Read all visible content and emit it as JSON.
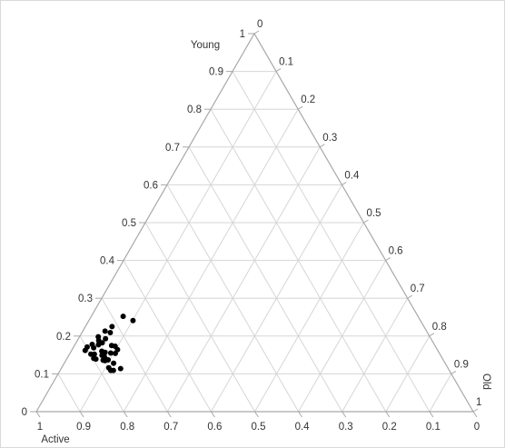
{
  "chart_data": {
    "type": "ternary",
    "axes": {
      "top": {
        "label": "Young"
      },
      "right": {
        "label": "Old"
      },
      "left": {
        "label": "Active"
      }
    },
    "range": [
      0,
      1
    ],
    "tick_values": [
      0,
      0.1,
      0.2,
      0.3,
      0.4,
      0.5,
      0.6,
      0.7,
      0.8,
      0.9,
      1
    ],
    "tick_labels_left_edge": [
      "0",
      "0.1",
      "0.2",
      "0.3",
      "0.4",
      "0.5",
      "0.6",
      "0.7",
      "0.8",
      "0.9",
      "1"
    ],
    "tick_labels_right_edge": [
      "0",
      "0.1",
      "0.2",
      "0.3",
      "0.4",
      "0.5",
      "0.6",
      "0.7",
      "0.8",
      "0.9",
      "1"
    ],
    "tick_labels_bottom_edge": [
      "1",
      "0.9",
      "0.8",
      "0.7",
      "0.6",
      "0.5",
      "0.4",
      "0.3",
      "0.2",
      "0.1",
      "0"
    ],
    "grid": true,
    "marker_color": "#000000",
    "grid_color": "#d6d6d6",
    "edge_color": "#a8a8a8",
    "points": [
      {
        "young": 0.252,
        "old": 0.073
      },
      {
        "young": 0.241,
        "old": 0.101
      },
      {
        "young": 0.225,
        "old": 0.061
      },
      {
        "young": 0.213,
        "old": 0.051
      },
      {
        "young": 0.209,
        "old": 0.065
      },
      {
        "young": 0.198,
        "old": 0.043
      },
      {
        "young": 0.193,
        "old": 0.062
      },
      {
        "young": 0.188,
        "old": 0.049
      },
      {
        "young": 0.182,
        "old": 0.06
      },
      {
        "young": 0.178,
        "old": 0.039
      },
      {
        "young": 0.177,
        "old": 0.054
      },
      {
        "young": 0.175,
        "old": 0.085
      },
      {
        "young": 0.173,
        "old": 0.094
      },
      {
        "young": 0.171,
        "old": 0.031
      },
      {
        "young": 0.169,
        "old": 0.047
      },
      {
        "young": 0.164,
        "old": 0.104
      },
      {
        "young": 0.162,
        "old": 0.031
      },
      {
        "young": 0.16,
        "old": 0.07
      },
      {
        "young": 0.157,
        "old": 0.079
      },
      {
        "young": 0.155,
        "old": 0.093
      },
      {
        "young": 0.154,
        "old": 0.104
      },
      {
        "young": 0.152,
        "old": 0.057
      },
      {
        "young": 0.152,
        "old": 0.049
      },
      {
        "young": 0.149,
        "old": 0.076
      },
      {
        "young": 0.147,
        "old": 0.082
      },
      {
        "young": 0.141,
        "old": 0.061
      },
      {
        "young": 0.141,
        "old": 0.087
      },
      {
        "young": 0.139,
        "old": 0.067
      },
      {
        "young": 0.137,
        "old": 0.096
      },
      {
        "young": 0.136,
        "old": 0.085
      },
      {
        "young": 0.135,
        "old": 0.09
      },
      {
        "young": 0.128,
        "old": 0.113
      },
      {
        "young": 0.116,
        "old": 0.108
      },
      {
        "young": 0.114,
        "old": 0.136
      },
      {
        "young": 0.109,
        "old": 0.116
      },
      {
        "young": 0.109,
        "old": 0.122
      }
    ]
  }
}
